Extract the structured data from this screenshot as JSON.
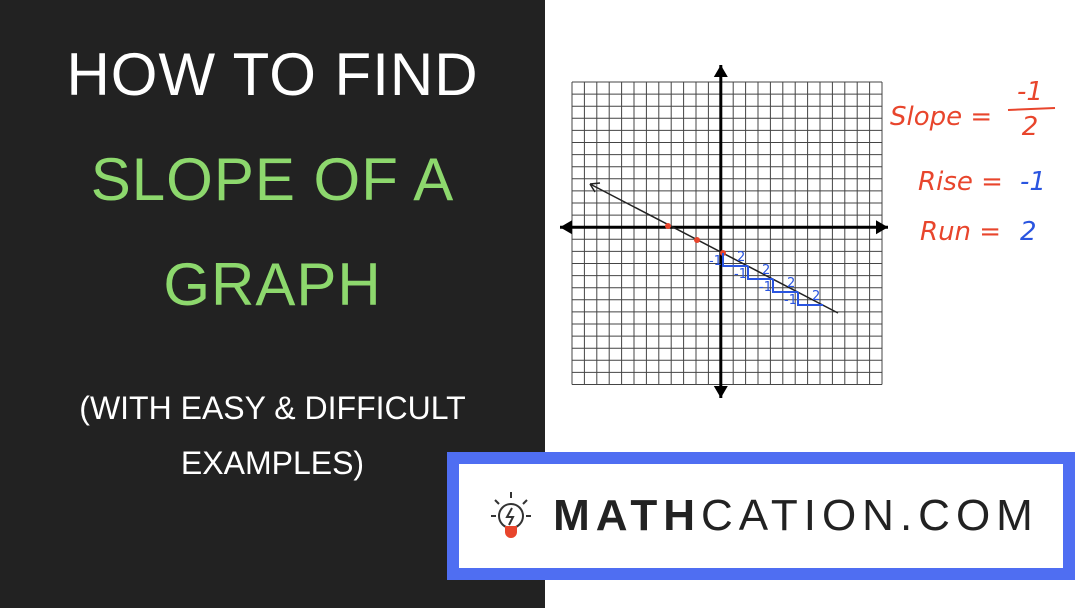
{
  "header": {
    "lines": [
      "HOW TO FIND",
      "SLOPE OF A",
      "GRAPH"
    ]
  },
  "subtitle": {
    "lines": [
      "(WITH EASY & DIFFICULT",
      "EXAMPLES)"
    ]
  },
  "notes": {
    "slope_label": "Slope =",
    "slope_numerator": "-1",
    "slope_denominator": "2",
    "rise_label": "Rise =",
    "rise_value": "-1",
    "run_label": "Run =",
    "run_value": "2"
  },
  "graph": {
    "steps": [
      {
        "rise": "-1",
        "run": "2"
      },
      {
        "rise": "-1",
        "run": "2"
      },
      {
        "rise": "-1",
        "run": "2"
      },
      {
        "rise": "-1",
        "run": "2"
      }
    ]
  },
  "logo": {
    "bold": "MATH",
    "rest": "CATION.COM"
  }
}
